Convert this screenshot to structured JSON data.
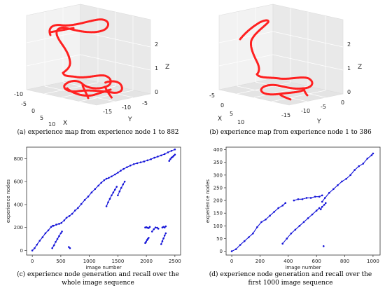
{
  "chart_data": [
    {
      "id": "a",
      "type": "scatter",
      "projection": "3d",
      "series_color": "#ff2020",
      "axes": {
        "x_label": "X",
        "y_label": "Y",
        "z_label": "Z",
        "x_ticks": [
          "-10",
          "-5",
          "0",
          "5",
          "10"
        ],
        "y_ticks": [
          "-15",
          "-10",
          "-5"
        ],
        "z_ticks": [
          "0",
          "1",
          "2"
        ]
      },
      "caption": "(a) experience map from experience node 1 to 882"
    },
    {
      "id": "b",
      "type": "scatter",
      "projection": "3d",
      "series_color": "#ff2020",
      "axes": {
        "x_label": "X",
        "y_label": "Y",
        "z_label": "Z",
        "x_ticks": [
          "-5",
          "0",
          "5",
          "10"
        ],
        "y_ticks": [
          "-15",
          "-10",
          "-5",
          "0"
        ],
        "z_ticks": [
          "0",
          "1",
          "2"
        ]
      },
      "caption": "(b) experience map from experience node 1 to 386"
    },
    {
      "id": "c",
      "type": "scatter",
      "series_color": "#1515d8",
      "xlabel": "image number",
      "ylabel": "experience nodes",
      "xlim": [
        -100,
        2600
      ],
      "ylim": [
        -40,
        900
      ],
      "x_ticks": [
        0,
        500,
        1000,
        1500,
        2000,
        2500
      ],
      "y_ticks": [
        0,
        200,
        400,
        600,
        800
      ],
      "series": [
        {
          "x": [
            0,
            40,
            80,
            130,
            180,
            230,
            280,
            330,
            360
          ],
          "y": [
            0,
            20,
            50,
            85,
            115,
            150,
            175,
            205,
            215
          ]
        },
        {
          "x": [
            370,
            420,
            470,
            510,
            560,
            600,
            650,
            700,
            750,
            800,
            860,
            920,
            980,
            1040,
            1100,
            1160,
            1210,
            1260,
            1300,
            1340,
            1390,
            1450,
            1500,
            1550,
            1600,
            1660,
            1720,
            1780,
            1840,
            1900,
            1960,
            2020,
            2080,
            2140,
            2200,
            2260,
            2320,
            2380,
            2440,
            2500
          ],
          "y": [
            215,
            225,
            232,
            240,
            262,
            285,
            300,
            320,
            348,
            370,
            405,
            440,
            470,
            505,
            535,
            565,
            590,
            612,
            625,
            632,
            645,
            662,
            678,
            695,
            710,
            725,
            740,
            752,
            760,
            768,
            775,
            785,
            795,
            808,
            818,
            828,
            840,
            855,
            868,
            880
          ]
        },
        {
          "x": [
            350,
            380,
            410,
            440,
            470,
            500,
            520
          ],
          "y": [
            20,
            45,
            75,
            100,
            125,
            150,
            165
          ]
        },
        {
          "x": [
            1300,
            1330,
            1360,
            1390,
            1420,
            1450,
            1480
          ],
          "y": [
            385,
            420,
            450,
            480,
            505,
            530,
            555
          ]
        },
        {
          "x": [
            1500,
            1530,
            1560,
            1590,
            1620
          ],
          "y": [
            480,
            515,
            545,
            575,
            600
          ]
        },
        {
          "x": [
            2400,
            2420,
            2440,
            2460,
            2480,
            2500
          ],
          "y": [
            780,
            795,
            808,
            815,
            825,
            835
          ]
        },
        {
          "x": [
            1980,
            2000,
            2020,
            2040,
            2060
          ],
          "y": [
            200,
            202,
            198,
            195,
            205
          ]
        },
        {
          "x": [
            1980,
            1995,
            2010,
            2025,
            2040
          ],
          "y": [
            65,
            75,
            90,
            100,
            110
          ]
        },
        {
          "x": [
            2100,
            2130,
            2160,
            2190,
            2210
          ],
          "y": [
            165,
            185,
            200,
            198,
            190
          ]
        },
        {
          "x": [
            2280,
            2300,
            2320,
            2340
          ],
          "y": [
            200,
            205,
            200,
            210
          ]
        },
        {
          "x": [
            2260,
            2280,
            2300,
            2320,
            2340
          ],
          "y": [
            55,
            80,
            105,
            130,
            150
          ]
        },
        {
          "x": [
            640,
            660
          ],
          "y": [
            30,
            20
          ]
        }
      ],
      "caption": "(c) experience node generation and recall over the whole image sequence"
    },
    {
      "id": "d",
      "type": "scatter",
      "series_color": "#1515d8",
      "xlabel": "image number",
      "ylabel": "experience nodes",
      "xlim": [
        -40,
        1050
      ],
      "ylim": [
        -15,
        410
      ],
      "x_ticks": [
        0,
        200,
        400,
        600,
        800,
        1000
      ],
      "y_ticks": [
        0,
        50,
        100,
        150,
        200,
        250,
        300,
        350,
        400
      ],
      "series": [
        {
          "x": [
            0,
            30,
            60,
            90,
            120,
            150,
            180,
            210,
            240,
            270,
            300,
            330,
            360,
            380
          ],
          "y": [
            0,
            8,
            25,
            40,
            55,
            70,
            95,
            115,
            125,
            140,
            155,
            170,
            180,
            190
          ]
        },
        {
          "x": [
            440,
            470,
            500,
            530,
            560,
            590,
            620,
            640
          ],
          "y": [
            200,
            205,
            205,
            210,
            210,
            215,
            215,
            220
          ]
        },
        {
          "x": [
            640,
            660,
            690,
            720,
            750,
            780,
            810,
            840,
            870,
            900,
            930,
            960,
            990,
            1000
          ],
          "y": [
            195,
            210,
            230,
            245,
            260,
            275,
            285,
            300,
            320,
            335,
            345,
            365,
            378,
            385
          ]
        },
        {
          "x": [
            360,
            390,
            420,
            450,
            480,
            510,
            540,
            570,
            600,
            620
          ],
          "y": [
            30,
            50,
            70,
            85,
            100,
            115,
            130,
            145,
            160,
            170
          ]
        },
        {
          "x": [
            630,
            640,
            655,
            665
          ],
          "y": [
            165,
            175,
            183,
            190
          ]
        },
        {
          "x": [
            650
          ],
          "y": [
            20
          ]
        }
      ],
      "caption": "(d) experience node generation and recall over the first 1000  image sequence"
    }
  ]
}
